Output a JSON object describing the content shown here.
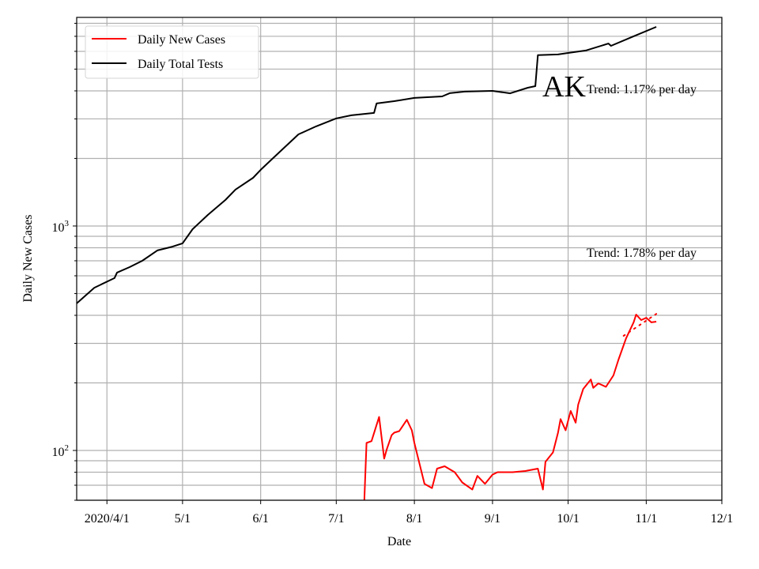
{
  "chart_data": {
    "type": "line",
    "title": "",
    "xlabel": "Date",
    "ylabel": "Daily New Cases",
    "yscale": "log",
    "xlim": [
      "2020-03-20",
      "2020-12-01"
    ],
    "ylim": [
      60,
      8500
    ],
    "grid": true,
    "legend_position": "top-left",
    "x_ticks": [
      {
        "date": "2020-04-01",
        "label": "2020/4/1"
      },
      {
        "date": "2020-05-01",
        "label": "5/1"
      },
      {
        "date": "2020-06-01",
        "label": "6/1"
      },
      {
        "date": "2020-07-01",
        "label": "7/1"
      },
      {
        "date": "2020-08-01",
        "label": "8/1"
      },
      {
        "date": "2020-09-01",
        "label": "9/1"
      },
      {
        "date": "2020-10-01",
        "label": "10/1"
      },
      {
        "date": "2020-11-01",
        "label": "11/1"
      },
      {
        "date": "2020-12-01",
        "label": "12/1"
      }
    ],
    "y_ticks": [
      {
        "value": 100,
        "base": "10",
        "exp": "2"
      },
      {
        "value": 1000,
        "base": "10",
        "exp": "3"
      }
    ],
    "series": [
      {
        "name": "Daily New Cases",
        "color": "#ff0000",
        "style": "solid",
        "points": [
          [
            "2020-07-12",
            55
          ],
          [
            "2020-07-13",
            108
          ],
          [
            "2020-07-15",
            110
          ],
          [
            "2020-07-18",
            141
          ],
          [
            "2020-07-20",
            92
          ],
          [
            "2020-07-21",
            101
          ],
          [
            "2020-07-23",
            117
          ],
          [
            "2020-07-24",
            120
          ],
          [
            "2020-07-26",
            122
          ],
          [
            "2020-07-29",
            137
          ],
          [
            "2020-07-31",
            123
          ],
          [
            "2020-08-01",
            108
          ],
          [
            "2020-08-05",
            71
          ],
          [
            "2020-08-08",
            68
          ],
          [
            "2020-08-10",
            83
          ],
          [
            "2020-08-13",
            85
          ],
          [
            "2020-08-17",
            80
          ],
          [
            "2020-08-20",
            72
          ],
          [
            "2020-08-24",
            67
          ],
          [
            "2020-08-26",
            77
          ],
          [
            "2020-08-29",
            71
          ],
          [
            "2020-09-01",
            78
          ],
          [
            "2020-09-03",
            80
          ],
          [
            "2020-09-09",
            80
          ],
          [
            "2020-09-14",
            81
          ],
          [
            "2020-09-19",
            83
          ],
          [
            "2020-09-21",
            67
          ],
          [
            "2020-09-22",
            89
          ],
          [
            "2020-09-25",
            98
          ],
          [
            "2020-09-27",
            120
          ],
          [
            "2020-09-28",
            138
          ],
          [
            "2020-09-30",
            123
          ],
          [
            "2020-10-02",
            150
          ],
          [
            "2020-10-04",
            133
          ],
          [
            "2020-10-05",
            160
          ],
          [
            "2020-10-07",
            188
          ],
          [
            "2020-10-10",
            207
          ],
          [
            "2020-10-11",
            190
          ],
          [
            "2020-10-13",
            199
          ],
          [
            "2020-10-16",
            192
          ],
          [
            "2020-10-19",
            216
          ],
          [
            "2020-10-21",
            254
          ],
          [
            "2020-10-24",
            316
          ],
          [
            "2020-10-27",
            372
          ],
          [
            "2020-10-28",
            403
          ],
          [
            "2020-10-30",
            381
          ],
          [
            "2020-11-01",
            390
          ],
          [
            "2020-11-03",
            372
          ],
          [
            "2020-11-05",
            375
          ]
        ]
      },
      {
        "name": "Daily Total Tests",
        "color": "#000000",
        "style": "solid",
        "points": [
          [
            "2020-03-20",
            452
          ],
          [
            "2020-03-27",
            531
          ],
          [
            "2020-04-04",
            586
          ],
          [
            "2020-04-05",
            620
          ],
          [
            "2020-04-10",
            656
          ],
          [
            "2020-04-15",
            700
          ],
          [
            "2020-04-21",
            778
          ],
          [
            "2020-04-27",
            809
          ],
          [
            "2020-05-01",
            837
          ],
          [
            "2020-05-05",
            968
          ],
          [
            "2020-05-11",
            1120
          ],
          [
            "2020-05-18",
            1306
          ],
          [
            "2020-05-22",
            1453
          ],
          [
            "2020-05-29",
            1640
          ],
          [
            "2020-06-01",
            1779
          ],
          [
            "2020-06-06",
            2010
          ],
          [
            "2020-06-10",
            2215
          ],
          [
            "2020-06-16",
            2561
          ],
          [
            "2020-06-23",
            2778
          ],
          [
            "2020-07-01",
            3016
          ],
          [
            "2020-07-07",
            3113
          ],
          [
            "2020-07-16",
            3190
          ],
          [
            "2020-07-17",
            3516
          ],
          [
            "2020-07-24",
            3600
          ],
          [
            "2020-08-01",
            3720
          ],
          [
            "2020-08-12",
            3780
          ],
          [
            "2020-08-15",
            3906
          ],
          [
            "2020-08-21",
            3970
          ],
          [
            "2020-09-01",
            4000
          ],
          [
            "2020-09-08",
            3900
          ],
          [
            "2020-09-15",
            4130
          ],
          [
            "2020-09-18",
            4200
          ],
          [
            "2020-09-19",
            5770
          ],
          [
            "2020-09-27",
            5810
          ],
          [
            "2020-10-01",
            5900
          ],
          [
            "2020-10-08",
            6050
          ],
          [
            "2020-10-17",
            6500
          ],
          [
            "2020-10-18",
            6350
          ],
          [
            "2020-10-27",
            7000
          ],
          [
            "2020-11-05",
            7710
          ]
        ]
      },
      {
        "color": "#ff0000",
        "style": "dotted",
        "points": [
          [
            "2020-10-23",
            324
          ],
          [
            "2020-11-05",
            406
          ]
        ]
      }
    ],
    "annotations": {
      "state": "AK",
      "tests_trend": "Trend: 1.17% per day",
      "cases_trend": "Trend: 1.78% per day"
    }
  }
}
